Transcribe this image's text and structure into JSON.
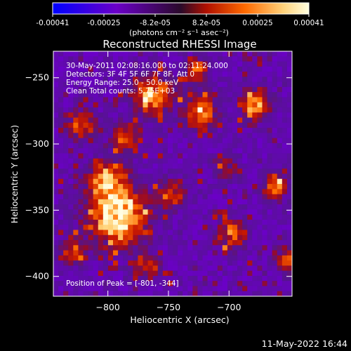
{
  "colorbar": {
    "ticks": [
      "-0.00041",
      "-0.00025",
      "-8.2e-05",
      "8.2e-05",
      "0.00025",
      "0.00041"
    ],
    "units": "(photons cm⁻² s⁻¹ asec⁻²)",
    "colors": [
      "#0000ff",
      "#6b00c8",
      "#3a1a2a",
      "#b01000",
      "#ff6a00",
      "#ffd27a",
      "#ffffe0"
    ]
  },
  "chart_data": {
    "type": "heatmap",
    "title": "Reconstructed RHESSI Image",
    "xlabel": "Heliocentric X (arcsec)",
    "ylabel": "Heliocentric Y (arcsec)",
    "xlim": [
      -845,
      -648
    ],
    "ylim": [
      -415,
      -230
    ],
    "xticks": [
      -800,
      -750,
      -700
    ],
    "yticks": [
      -250,
      -300,
      -350,
      -400
    ],
    "vmin": -0.00041,
    "vmax": 0.00041,
    "annotations": [
      "30-May-2011 02:08:16.000 to 02:11:24.000",
      "Detectors: 3F 4F 5F 6F 7F 8F, Att 0",
      "Energy Range: 25.0 - 50.0 keV",
      "Clean     Total counts: 5.75E+03"
    ],
    "peak_text": "Position of Peak = [-801, -344]",
    "peak": [
      -801,
      -344
    ]
  },
  "footer": {
    "timestamp": "11-May-2022 16:44"
  }
}
